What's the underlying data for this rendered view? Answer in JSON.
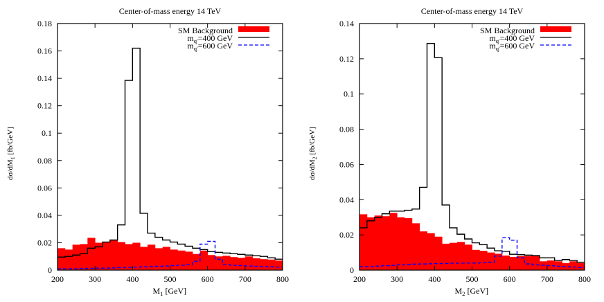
{
  "chart_data": [
    {
      "type": "histogram",
      "title": "Center-of-mass energy 14 TeV",
      "xlabel": {
        "main": "M",
        "sub": "1",
        "rest": " [GeV]"
      },
      "ylabel": {
        "main": "dσ/dM",
        "sub": "1",
        "rest": " [fb/GeV]"
      },
      "xlim": [
        200,
        800
      ],
      "ylim": [
        0,
        0.18
      ],
      "xticks": [
        200,
        300,
        400,
        500,
        600,
        700,
        800
      ],
      "yticks": [
        0,
        0.02,
        0.04,
        0.06,
        0.08,
        0.1,
        0.12,
        0.14,
        0.16,
        0.18
      ],
      "grid": false,
      "legend_position": "top-right",
      "bin_width": 20,
      "series": [
        {
          "name": "SM Background",
          "style": "fill",
          "color": "#ff0000",
          "values": [
            0.016,
            0.015,
            0.0186,
            0.019,
            0.0236,
            0.02,
            0.0205,
            0.022,
            0.0205,
            0.019,
            0.02,
            0.017,
            0.0186,
            0.016,
            0.017,
            0.015,
            0.0143,
            0.0135,
            0.0118,
            0.0143,
            0.011,
            0.01,
            0.0105,
            0.0095,
            0.009,
            0.01,
            0.0087,
            0.008,
            0.0077,
            0.007
          ]
        },
        {
          "name": {
            "main": "m",
            "sub": "q'",
            "rest": "=400 GeV"
          },
          "style": "solid",
          "color": "#000000",
          "values": [
            0.0095,
            0.01,
            0.011,
            0.012,
            0.016,
            0.017,
            0.0205,
            0.022,
            0.033,
            0.1385,
            0.162,
            0.0415,
            0.027,
            0.024,
            0.022,
            0.0205,
            0.019,
            0.0175,
            0.016,
            0.015,
            0.0135,
            0.013,
            0.0125,
            0.012,
            0.0115,
            0.011,
            0.0105,
            0.01,
            0.009,
            0.008
          ]
        },
        {
          "name": {
            "main": "m",
            "sub": "q'",
            "rest": "=600 GeV"
          },
          "style": "dashed",
          "color": "#0000ff",
          "values": [
            0.001,
            0.001,
            0.001,
            0.0012,
            0.0013,
            0.0014,
            0.0015,
            0.0016,
            0.0018,
            0.002,
            0.0022,
            0.0024,
            0.0026,
            0.0028,
            0.003,
            0.0033,
            0.0036,
            0.004,
            0.0065,
            0.019,
            0.021,
            0.008,
            0.004,
            0.0035,
            0.0033,
            0.003,
            0.0028,
            0.0026,
            0.0024,
            0.0022
          ]
        }
      ]
    },
    {
      "type": "histogram",
      "title": "Center-of-mass energy 14 TeV",
      "xlabel": {
        "main": "M",
        "sub": "2",
        "rest": " [GeV]"
      },
      "ylabel": {
        "main": "dσ/dM",
        "sub": "2",
        "rest": " [fb/GeV]"
      },
      "xlim": [
        200,
        800
      ],
      "ylim": [
        0,
        0.14
      ],
      "xticks": [
        200,
        300,
        400,
        500,
        600,
        700,
        800
      ],
      "yticks": [
        0,
        0.02,
        0.04,
        0.06,
        0.08,
        0.1,
        0.12,
        0.14
      ],
      "grid": false,
      "legend_position": "top-right",
      "bin_width": 20,
      "series": [
        {
          "name": "SM Background",
          "style": "fill",
          "color": "#ff0000",
          "values": [
            0.0317,
            0.03,
            0.031,
            0.0306,
            0.0325,
            0.03,
            0.0295,
            0.0266,
            0.022,
            0.021,
            0.019,
            0.015,
            0.0155,
            0.016,
            0.0145,
            0.0115,
            0.011,
            0.01,
            0.0093,
            0.0083,
            0.0075,
            0.008,
            0.008,
            0.008,
            0.005,
            0.0055,
            0.005,
            0.004,
            0.005,
            0.004
          ]
        },
        {
          "name": {
            "main": "m",
            "sub": "q'",
            "rest": "=400 GeV"
          },
          "style": "solid",
          "color": "#000000",
          "values": [
            0.024,
            0.028,
            0.03,
            0.032,
            0.0335,
            0.0335,
            0.034,
            0.0347,
            0.047,
            0.1287,
            0.1206,
            0.037,
            0.024,
            0.0204,
            0.0177,
            0.0155,
            0.0145,
            0.0125,
            0.011,
            0.0107,
            0.009,
            0.0088,
            0.0085,
            0.0083,
            0.007,
            0.007,
            0.0055,
            0.006,
            0.0055,
            0.0045
          ]
        },
        {
          "name": {
            "main": "m",
            "sub": "q'",
            "rest": "=600 GeV"
          },
          "style": "dashed",
          "color": "#0000ff",
          "values": [
            0.002,
            0.002,
            0.0023,
            0.0025,
            0.0027,
            0.003,
            0.0032,
            0.0034,
            0.0035,
            0.0036,
            0.0037,
            0.0038,
            0.0039,
            0.004,
            0.004,
            0.004,
            0.0042,
            0.0045,
            0.008,
            0.0184,
            0.017,
            0.007,
            0.0035,
            0.003,
            0.0028,
            0.0025,
            0.0022,
            0.002,
            0.0018,
            0.0015
          ]
        }
      ]
    }
  ]
}
